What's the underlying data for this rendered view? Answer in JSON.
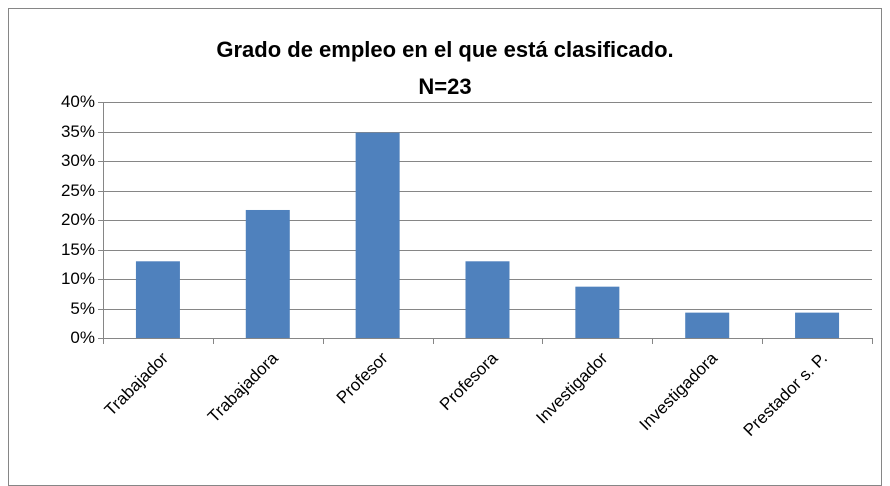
{
  "chart_data": {
    "type": "bar",
    "title": "Grado de empleo en el que está clasificado.",
    "subtitle": "N=23",
    "categories": [
      "Trabajador",
      "Trabajadora",
      "Profesor",
      "Profesora",
      "Investigador",
      "Investigadora",
      "Prestador s. P."
    ],
    "values": [
      13,
      21.7,
      34.8,
      13,
      8.7,
      4.3,
      4.3
    ],
    "color": "#4f81bd",
    "ylim": [
      0,
      40
    ],
    "yticks": [
      {
        "value": 0,
        "label": "0%"
      },
      {
        "value": 5,
        "label": "5%"
      },
      {
        "value": 10,
        "label": "10%"
      },
      {
        "value": 15,
        "label": "15%"
      },
      {
        "value": 20,
        "label": "20%"
      },
      {
        "value": 25,
        "label": "25%"
      },
      {
        "value": 30,
        "label": "30%"
      },
      {
        "value": 35,
        "label": "35%"
      },
      {
        "value": 40,
        "label": "40%"
      }
    ],
    "grid": true
  }
}
